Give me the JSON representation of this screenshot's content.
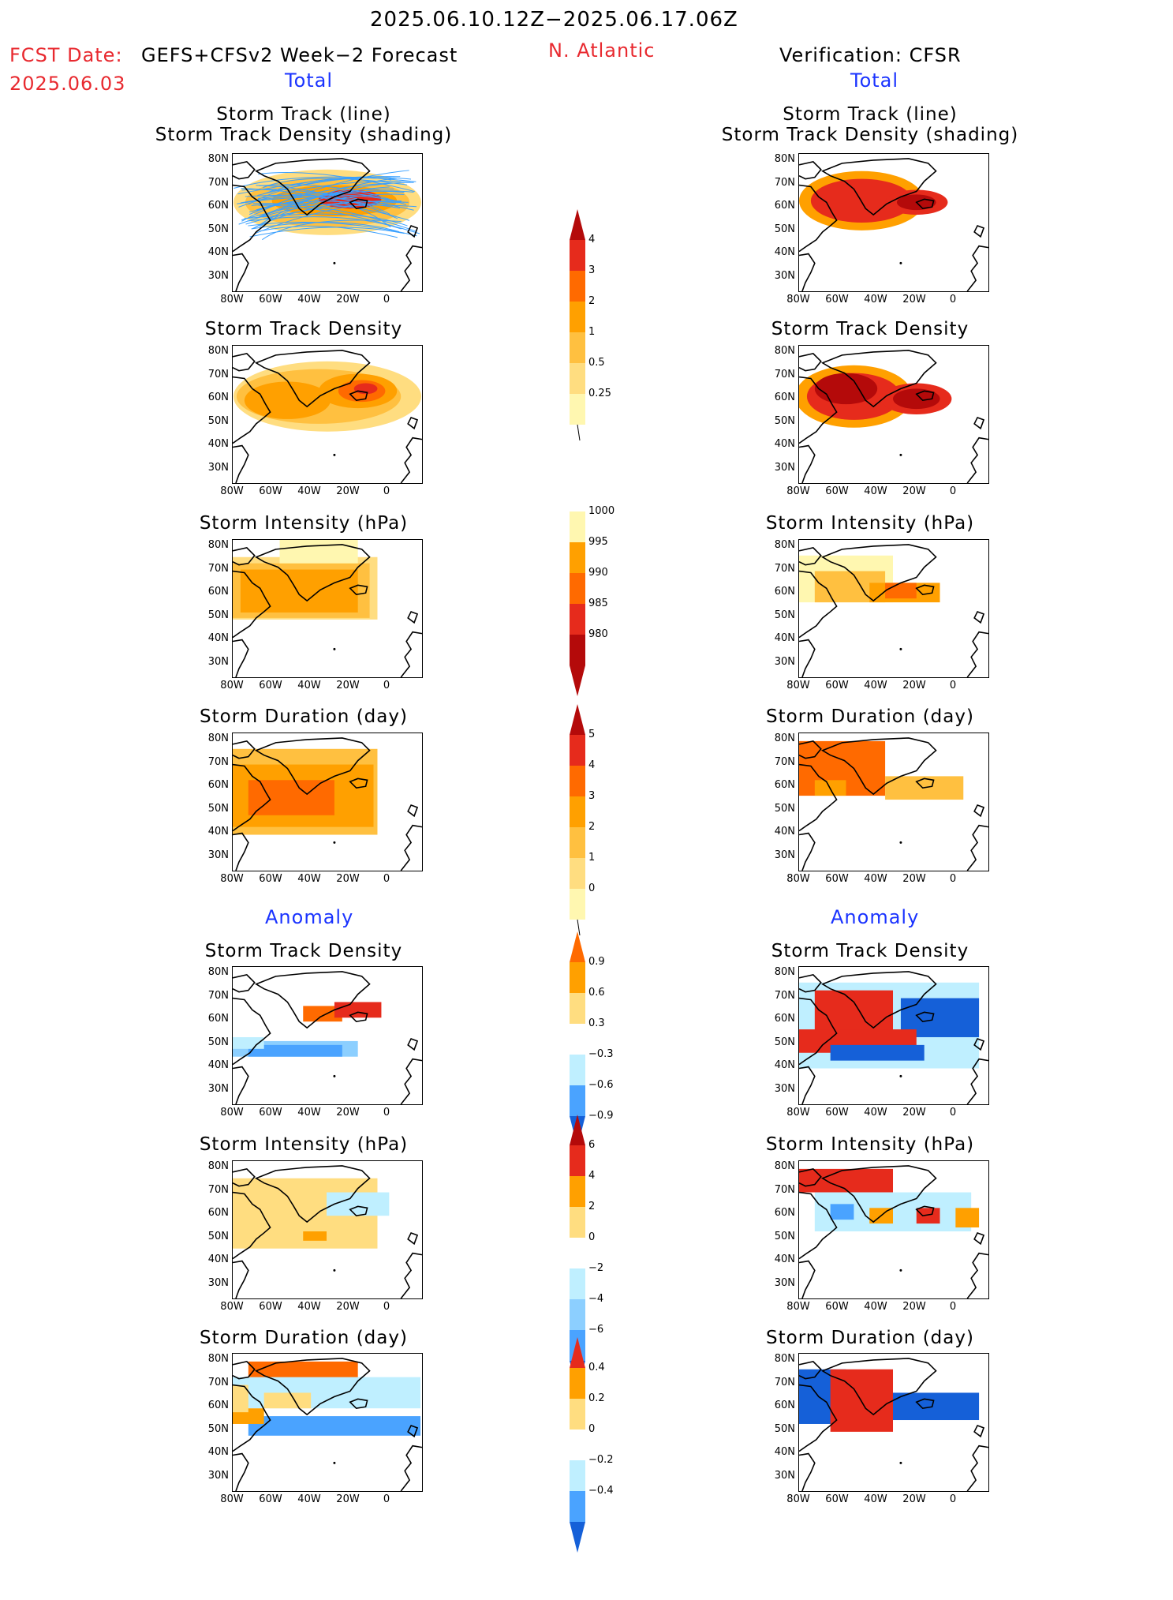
{
  "header": {
    "date_range": "2025.06.10.12Z−2025.06.17.06Z",
    "fcst_prefix": "FCST Date:",
    "fcst_model": "GEFS+CFSv2 Week−2 Forecast",
    "fcst_date": "2025.06.03",
    "region": "N. Atlantic",
    "verification": "Verification: CFSR"
  },
  "sections": {
    "total": "Total",
    "anomaly": "Anomaly"
  },
  "titles": {
    "track_line": "Storm Track (line)",
    "track_density_shading": "Storm Track Density (shading)",
    "track_density": "Storm Track Density",
    "intensity": "Storm Intensity (hPa)",
    "duration": "Storm Duration (day)"
  },
  "axes": {
    "lat": [
      "80N",
      "70N",
      "60N",
      "50N",
      "40N",
      "30N"
    ],
    "lon": [
      "80W",
      "60W",
      "40W",
      "20W",
      "0"
    ]
  },
  "colorbars": {
    "density": [
      "4",
      "3",
      "2",
      "1",
      "0.5",
      "0.25"
    ],
    "intensity": [
      "1000",
      "995",
      "990",
      "985",
      "980"
    ],
    "duration": [
      "5",
      "4",
      "3",
      "2",
      "1",
      "0"
    ],
    "density_anom": [
      "0.9",
      "0.6",
      "0.3",
      "−0.3",
      "−0.6",
      "−0.9"
    ],
    "intensity_anom": [
      "6",
      "4",
      "2",
      "0",
      "−2",
      "−4",
      "−6"
    ],
    "duration_anom": [
      "0.4",
      "0.2",
      "0",
      "−0.2",
      "−0.4"
    ]
  },
  "colors": {
    "yellow_light": "#fff7b0",
    "yellow": "#ffdd80",
    "orange_light": "#ffc040",
    "orange": "#ffa000",
    "orange_dark": "#ff6a00",
    "red": "#e62b1c",
    "dark_red": "#b40a0a",
    "blue_light": "#bfefff",
    "blue_mid": "#8ccfff",
    "blue": "#4aa3ff",
    "blue_dark": "#1560d8",
    "track_blue": "#3aa0ff",
    "title_red": "#e8292f",
    "title_blue": "#1a33ff"
  }
}
